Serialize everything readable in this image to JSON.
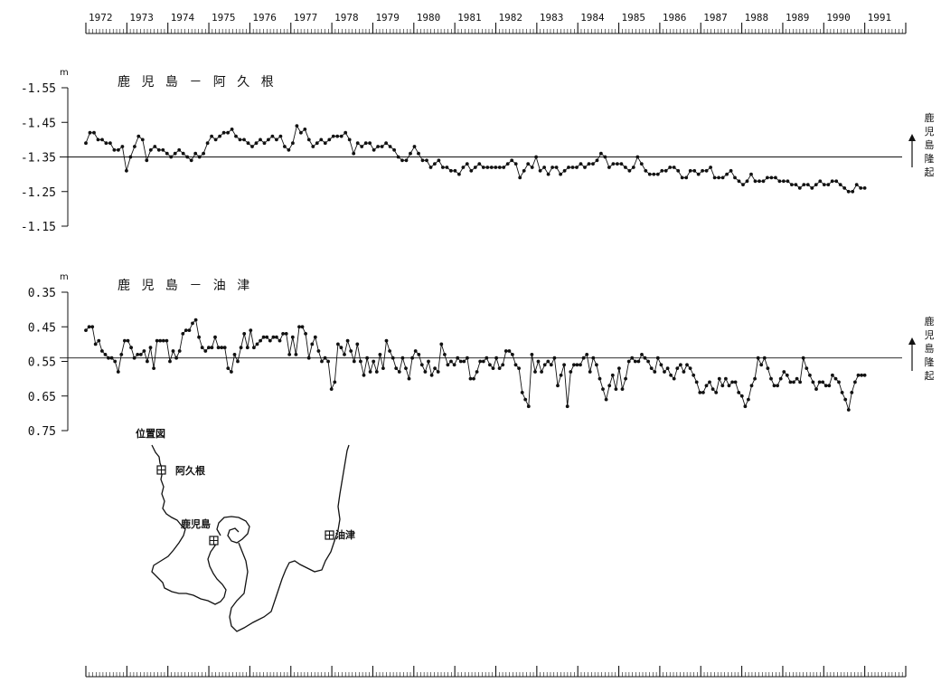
{
  "chart_data": [
    {
      "type": "line",
      "title": "鹿 児 島 － 阿 久 根",
      "unit": "m",
      "side_note": [
        "鹿",
        "児",
        "島",
        "隆",
        "起"
      ],
      "yticks": [
        "-1.55",
        "-1.45",
        "-1.35",
        "-1.25",
        "-1.15"
      ],
      "ylim": [
        -1.55,
        -1.15
      ],
      "y_inverted": true,
      "reference_line": -1.35,
      "x_start": 1972.0,
      "x_end": 1991.0,
      "series": [
        {
          "values": [
            -1.39,
            -1.42,
            -1.42,
            -1.4,
            -1.4,
            -1.39,
            -1.39,
            -1.37,
            -1.37,
            -1.38,
            -1.31,
            -1.35,
            -1.38,
            -1.41,
            -1.4,
            -1.34,
            -1.37,
            -1.38,
            -1.37,
            -1.37,
            -1.36,
            -1.35,
            -1.36,
            -1.37,
            -1.36,
            -1.35,
            -1.34,
            -1.36,
            -1.35,
            -1.36,
            -1.39,
            -1.41,
            -1.4,
            -1.41,
            -1.42,
            -1.42,
            -1.43,
            -1.41,
            -1.4,
            -1.4,
            -1.39,
            -1.38,
            -1.39,
            -1.4,
            -1.39,
            -1.4,
            -1.41,
            -1.4,
            -1.41,
            -1.38,
            -1.37,
            -1.39,
            -1.44,
            -1.42,
            -1.43,
            -1.4,
            -1.38,
            -1.39,
            -1.4,
            -1.39,
            -1.4,
            -1.41,
            -1.41,
            -1.41,
            -1.42,
            -1.4,
            -1.36,
            -1.39,
            -1.38,
            -1.39,
            -1.39,
            -1.37,
            -1.38,
            -1.38,
            -1.39,
            -1.38,
            -1.37,
            -1.35,
            -1.34,
            -1.34,
            -1.36,
            -1.38,
            -1.36,
            -1.34,
            -1.34,
            -1.32,
            -1.33,
            -1.34,
            -1.32,
            -1.32,
            -1.31,
            -1.31,
            -1.3,
            -1.32,
            -1.33,
            -1.31,
            -1.32,
            -1.33,
            -1.32,
            -1.32,
            -1.32,
            -1.32,
            -1.32,
            -1.32,
            -1.33,
            -1.34,
            -1.33,
            -1.29,
            -1.31,
            -1.33,
            -1.32,
            -1.35,
            -1.31,
            -1.32,
            -1.3,
            -1.32,
            -1.32,
            -1.3,
            -1.31,
            -1.32,
            -1.32,
            -1.32,
            -1.33,
            -1.32,
            -1.33,
            -1.33,
            -1.34,
            -1.36,
            -1.35,
            -1.32,
            -1.33,
            -1.33,
            -1.33,
            -1.32,
            -1.31,
            -1.32,
            -1.35,
            -1.33,
            -1.31,
            -1.3,
            -1.3,
            -1.3,
            -1.31,
            -1.31,
            -1.32,
            -1.32,
            -1.31,
            -1.29,
            -1.29,
            -1.31,
            -1.31,
            -1.3,
            -1.31,
            -1.31,
            -1.32,
            -1.29,
            -1.29,
            -1.29,
            -1.3,
            -1.31,
            -1.29,
            -1.28,
            -1.27,
            -1.28,
            -1.3,
            -1.28,
            -1.28,
            -1.28,
            -1.29,
            -1.29,
            -1.29,
            -1.28,
            -1.28,
            -1.28,
            -1.27,
            -1.27,
            -1.26,
            -1.27,
            -1.27,
            -1.26,
            -1.27,
            -1.28,
            -1.27,
            -1.27,
            -1.28,
            -1.28,
            -1.27,
            -1.26,
            -1.25,
            -1.25,
            -1.27,
            -1.26,
            -1.26
          ]
        }
      ]
    },
    {
      "type": "line",
      "title": "鹿 児 島 － 油 津",
      "unit": "m",
      "side_note": [
        "鹿",
        "児",
        "島",
        "隆",
        "起"
      ],
      "yticks": [
        "0.35",
        "0.45",
        "0.55",
        "0.65",
        "0.75"
      ],
      "ylim": [
        0.35,
        0.75
      ],
      "y_inverted": false,
      "reference_line": 0.54,
      "x_start": 1972.0,
      "x_end": 1991.0,
      "series": [
        {
          "values": [
            0.46,
            0.45,
            0.45,
            0.5,
            0.49,
            0.52,
            0.53,
            0.54,
            0.54,
            0.55,
            0.58,
            0.53,
            0.49,
            0.49,
            0.51,
            0.54,
            0.53,
            0.53,
            0.52,
            0.55,
            0.51,
            0.57,
            0.49,
            0.49,
            0.49,
            0.49,
            0.55,
            0.52,
            0.54,
            0.52,
            0.47,
            0.46,
            0.46,
            0.44,
            0.43,
            0.48,
            0.51,
            0.52,
            0.51,
            0.51,
            0.48,
            0.51,
            0.51,
            0.51,
            0.57,
            0.58,
            0.53,
            0.55,
            0.51,
            0.47,
            0.51,
            0.46,
            0.51,
            0.5,
            0.49,
            0.48,
            0.48,
            0.49,
            0.48,
            0.48,
            0.49,
            0.47,
            0.47,
            0.53,
            0.48,
            0.53,
            0.45,
            0.45,
            0.47,
            0.54,
            0.5,
            0.48,
            0.52,
            0.55,
            0.54,
            0.55,
            0.63,
            0.61,
            0.5,
            0.51,
            0.53,
            0.49,
            0.52,
            0.55,
            0.5,
            0.55,
            0.59,
            0.54,
            0.58,
            0.55,
            0.58,
            0.53,
            0.57,
            0.49,
            0.52,
            0.54,
            0.57,
            0.58,
            0.54,
            0.57,
            0.6,
            0.54,
            0.52,
            0.53,
            0.56,
            0.58,
            0.55,
            0.59,
            0.57,
            0.58,
            0.5,
            0.53,
            0.56,
            0.55,
            0.56,
            0.54,
            0.55,
            0.55,
            0.54,
            0.6,
            0.6,
            0.58,
            0.55,
            0.55,
            0.54,
            0.56,
            0.57,
            0.54,
            0.57,
            0.56,
            0.52,
            0.52,
            0.53,
            0.56,
            0.57,
            0.64,
            0.66,
            0.68,
            0.53,
            0.58,
            0.55,
            0.58,
            0.56,
            0.55,
            0.56,
            0.54,
            0.62,
            0.59,
            0.56,
            0.68,
            0.58,
            0.56,
            0.56,
            0.56,
            0.54,
            0.53,
            0.58,
            0.54,
            0.56,
            0.6,
            0.63,
            0.66,
            0.62,
            0.59,
            0.63,
            0.57,
            0.63,
            0.6,
            0.55,
            0.54,
            0.55,
            0.55,
            0.53,
            0.54,
            0.55,
            0.57,
            0.58,
            0.54,
            0.56,
            0.58,
            0.57,
            0.59,
            0.6,
            0.57,
            0.56,
            0.58,
            0.56,
            0.57,
            0.59,
            0.61,
            0.64,
            0.64,
            0.62,
            0.61,
            0.63,
            0.64,
            0.6,
            0.62,
            0.6,
            0.62,
            0.61,
            0.61,
            0.64,
            0.65,
            0.68,
            0.66,
            0.62,
            0.6,
            0.54,
            0.56,
            0.54,
            0.57,
            0.6,
            0.62,
            0.62,
            0.6,
            0.58,
            0.59,
            0.61,
            0.61,
            0.6,
            0.61,
            0.54,
            0.57,
            0.59,
            0.61,
            0.63,
            0.61,
            0.61,
            0.62,
            0.62,
            0.59,
            0.6,
            0.61,
            0.64,
            0.66,
            0.69,
            0.64,
            0.61,
            0.59,
            0.59,
            0.59
          ]
        }
      ]
    }
  ],
  "years": [
    "1972",
    "1973",
    "1974",
    "1975",
    "1976",
    "1977",
    "1978",
    "1979",
    "1980",
    "1981",
    "1982",
    "1983",
    "1984",
    "1985",
    "1986",
    "1987",
    "1988",
    "1989",
    "1990",
    "1991"
  ],
  "map": {
    "title": "位置図",
    "labels": {
      "akune": "阿久根",
      "kagoshima": "鹿児島",
      "aburatsu": "油津"
    }
  }
}
